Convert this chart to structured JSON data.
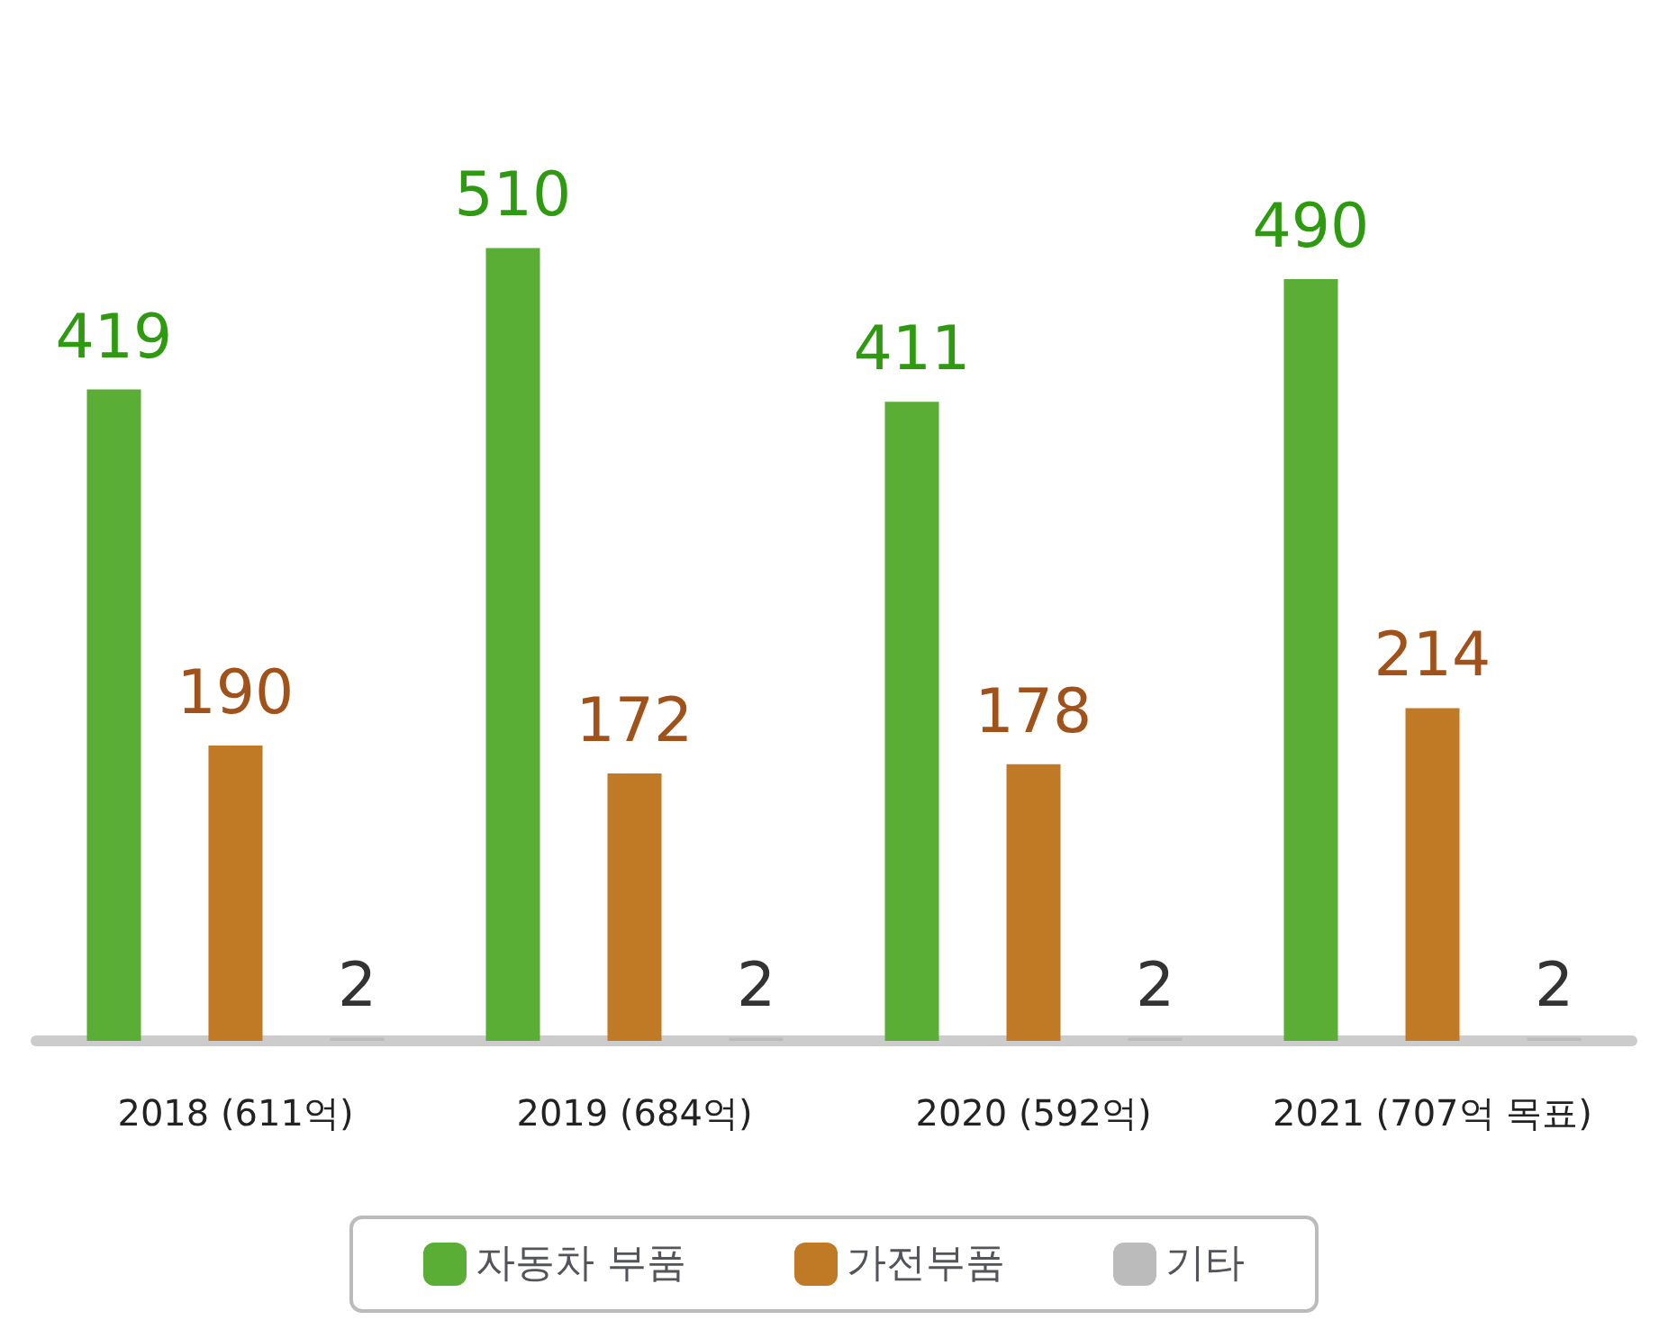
{
  "chart_data": {
    "type": "bar",
    "categories": [
      "2018 (611억)",
      "2019 (684억)",
      "2020 (592억)",
      "2021 (707억 목표)"
    ],
    "series": [
      {
        "name": "자동차 부품",
        "color": "#5aad35",
        "values": [
          419,
          510,
          411,
          490
        ]
      },
      {
        "name": "가전부품",
        "color": "#c07a25",
        "values": [
          190,
          172,
          178,
          214
        ]
      },
      {
        "name": "기타",
        "color": "#bbbbbb",
        "values": [
          2,
          2,
          2,
          2
        ]
      }
    ],
    "data_labels": true,
    "legend": "bottom",
    "grid": false,
    "tick_labels": "x"
  }
}
